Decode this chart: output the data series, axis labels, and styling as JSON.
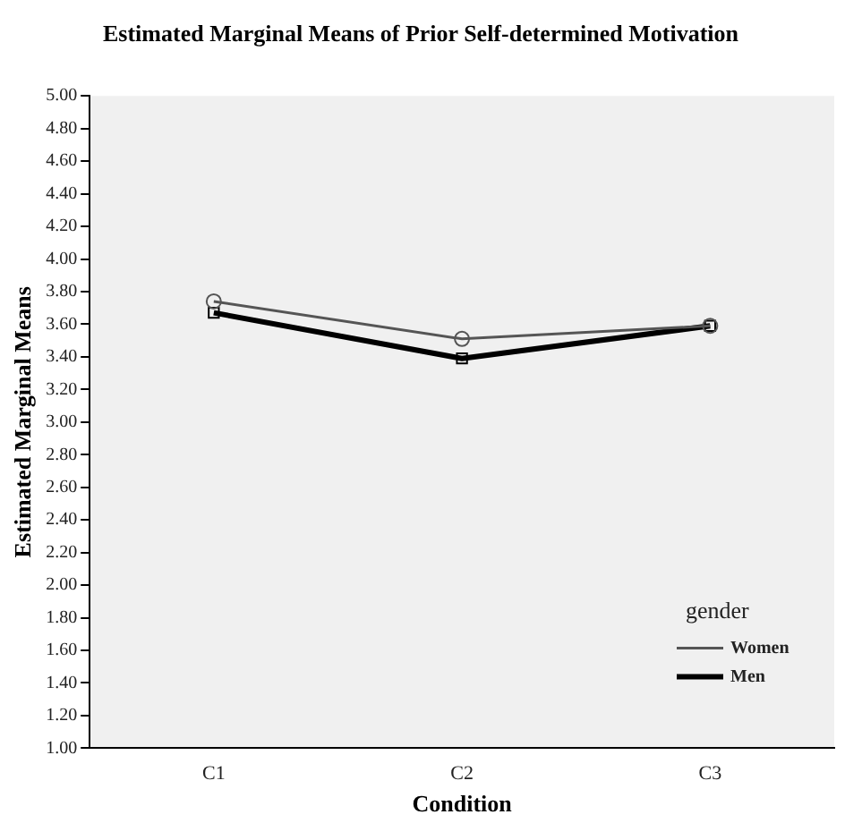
{
  "chart_data": {
    "type": "line",
    "title": "Estimated Marginal Means of Prior Self-determined Motivation",
    "xlabel": "Condition",
    "ylabel": "Estimated Marginal Means",
    "legend_title": "gender",
    "categories": [
      "C1",
      "C2",
      "C3"
    ],
    "series": [
      {
        "name": "Women",
        "color": "#555555",
        "values": [
          3.74,
          3.51,
          3.59
        ],
        "marker": "circle"
      },
      {
        "name": "Men",
        "color": "#000000",
        "values": [
          3.67,
          3.39,
          3.59
        ],
        "marker": "square"
      }
    ],
    "ylim": [
      1,
      5
    ],
    "yticks": [
      {
        "value": 1,
        "label": "1.00"
      },
      {
        "value": 1.2,
        "label": "1.20"
      },
      {
        "value": 1.4,
        "label": "1.40"
      },
      {
        "value": 1.6,
        "label": "1.60"
      },
      {
        "value": 1.8,
        "label": "1.80"
      },
      {
        "value": 2,
        "label": "2.00"
      },
      {
        "value": 2.2,
        "label": "2.20"
      },
      {
        "value": 2.4,
        "label": "2.40"
      },
      {
        "value": 2.6,
        "label": "2.60"
      },
      {
        "value": 2.8,
        "label": "2.80"
      },
      {
        "value": 3,
        "label": "3.00"
      },
      {
        "value": 3.2,
        "label": "3.20"
      },
      {
        "value": 3.4,
        "label": "3.40"
      },
      {
        "value": 3.6,
        "label": "3.60"
      },
      {
        "value": 3.8,
        "label": "3.80"
      },
      {
        "value": 4,
        "label": "4.00"
      },
      {
        "value": 4.2,
        "label": "4.20"
      },
      {
        "value": 4.4,
        "label": "4.40"
      },
      {
        "value": 4.6,
        "label": "4.60"
      },
      {
        "value": 4.8,
        "label": "4.80"
      },
      {
        "value": 5,
        "label": "5.00"
      }
    ],
    "grid": false,
    "legend": "bottom right",
    "line_style": "solid"
  }
}
